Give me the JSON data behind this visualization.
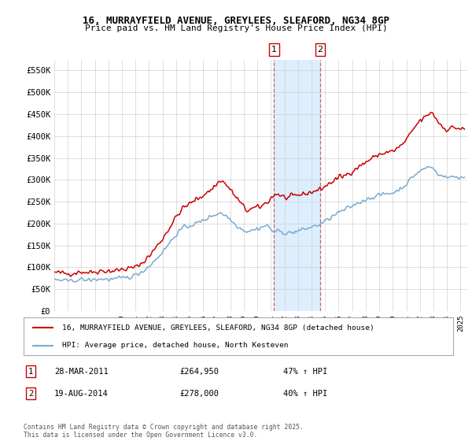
{
  "title": "16, MURRAYFIELD AVENUE, GREYLEES, SLEAFORD, NG34 8GP",
  "subtitle": "Price paid vs. HM Land Registry's House Price Index (HPI)",
  "legend_line1": "16, MURRAYFIELD AVENUE, GREYLEES, SLEAFORD, NG34 8GP (detached house)",
  "legend_line2": "HPI: Average price, detached house, North Kesteven",
  "red_color": "#cc0000",
  "blue_color": "#7aabcf",
  "shade_color": "#ddeeff",
  "annotation1": {
    "label": "1",
    "date": "28-MAR-2011",
    "price": "£264,950",
    "hpi": "47% ↑ HPI"
  },
  "annotation2": {
    "label": "2",
    "date": "19-AUG-2014",
    "price": "£278,000",
    "hpi": "40% ↑ HPI"
  },
  "vline1_x": 2011.23,
  "vline2_x": 2014.63,
  "footer": "Contains HM Land Registry data © Crown copyright and database right 2025.\nThis data is licensed under the Open Government Licence v3.0.",
  "ylim": [
    0,
    575000
  ],
  "xlim_start": 1995,
  "xlim_end": 2025.5,
  "anchors_red": [
    [
      1995.0,
      88000
    ],
    [
      1995.5,
      87000
    ],
    [
      1996.0,
      85000
    ],
    [
      1996.5,
      87000
    ],
    [
      1997.0,
      90000
    ],
    [
      1997.5,
      88000
    ],
    [
      1998.0,
      90000
    ],
    [
      1998.5,
      92000
    ],
    [
      1999.0,
      91000
    ],
    [
      1999.5,
      92000
    ],
    [
      2000.0,
      95000
    ],
    [
      2000.5,
      97000
    ],
    [
      2001.0,
      100000
    ],
    [
      2001.5,
      110000
    ],
    [
      2002.0,
      125000
    ],
    [
      2002.5,
      145000
    ],
    [
      2003.0,
      165000
    ],
    [
      2003.5,
      190000
    ],
    [
      2004.0,
      215000
    ],
    [
      2004.5,
      235000
    ],
    [
      2005.0,
      245000
    ],
    [
      2005.5,
      255000
    ],
    [
      2006.0,
      265000
    ],
    [
      2006.5,
      275000
    ],
    [
      2007.0,
      290000
    ],
    [
      2007.3,
      300000
    ],
    [
      2007.8,
      285000
    ],
    [
      2008.3,
      265000
    ],
    [
      2008.8,
      245000
    ],
    [
      2009.2,
      230000
    ],
    [
      2009.8,
      235000
    ],
    [
      2010.2,
      238000
    ],
    [
      2010.7,
      248000
    ],
    [
      2011.23,
      264950
    ],
    [
      2011.5,
      268000
    ],
    [
      2011.8,
      262000
    ],
    [
      2012.2,
      258000
    ],
    [
      2012.7,
      262000
    ],
    [
      2013.0,
      265000
    ],
    [
      2013.5,
      268000
    ],
    [
      2014.0,
      272000
    ],
    [
      2014.63,
      278000
    ],
    [
      2015.0,
      285000
    ],
    [
      2015.5,
      295000
    ],
    [
      2016.0,
      305000
    ],
    [
      2016.5,
      310000
    ],
    [
      2017.0,
      320000
    ],
    [
      2017.5,
      330000
    ],
    [
      2018.0,
      340000
    ],
    [
      2018.5,
      350000
    ],
    [
      2019.0,
      358000
    ],
    [
      2019.5,
      362000
    ],
    [
      2020.0,
      365000
    ],
    [
      2020.5,
      375000
    ],
    [
      2021.0,
      390000
    ],
    [
      2021.5,
      415000
    ],
    [
      2022.0,
      435000
    ],
    [
      2022.5,
      445000
    ],
    [
      2022.8,
      455000
    ],
    [
      2023.0,
      450000
    ],
    [
      2023.3,
      435000
    ],
    [
      2023.7,
      420000
    ],
    [
      2024.0,
      415000
    ],
    [
      2024.5,
      420000
    ],
    [
      2025.2,
      415000
    ]
  ],
  "anchors_blue": [
    [
      1995.0,
      72000
    ],
    [
      1995.5,
      70000
    ],
    [
      1996.0,
      68000
    ],
    [
      1996.5,
      70000
    ],
    [
      1997.0,
      72000
    ],
    [
      1997.5,
      70000
    ],
    [
      1998.0,
      72000
    ],
    [
      1998.5,
      73000
    ],
    [
      1999.0,
      72000
    ],
    [
      1999.5,
      73000
    ],
    [
      2000.0,
      75000
    ],
    [
      2000.5,
      77000
    ],
    [
      2001.0,
      82000
    ],
    [
      2001.5,
      90000
    ],
    [
      2002.0,
      102000
    ],
    [
      2002.5,
      118000
    ],
    [
      2003.0,
      135000
    ],
    [
      2003.5,
      155000
    ],
    [
      2004.0,
      175000
    ],
    [
      2004.5,
      190000
    ],
    [
      2005.0,
      195000
    ],
    [
      2005.5,
      200000
    ],
    [
      2006.0,
      207000
    ],
    [
      2006.5,
      215000
    ],
    [
      2007.0,
      222000
    ],
    [
      2007.3,
      225000
    ],
    [
      2007.8,
      215000
    ],
    [
      2008.3,
      200000
    ],
    [
      2008.8,
      188000
    ],
    [
      2009.2,
      182000
    ],
    [
      2009.8,
      186000
    ],
    [
      2010.2,
      190000
    ],
    [
      2010.7,
      196000
    ],
    [
      2011.23,
      180000
    ],
    [
      2011.5,
      183000
    ],
    [
      2011.8,
      180000
    ],
    [
      2012.2,
      178000
    ],
    [
      2012.7,
      180000
    ],
    [
      2013.0,
      183000
    ],
    [
      2013.5,
      187000
    ],
    [
      2014.0,
      192000
    ],
    [
      2014.63,
      198000
    ],
    [
      2015.0,
      205000
    ],
    [
      2015.5,
      215000
    ],
    [
      2016.0,
      225000
    ],
    [
      2016.5,
      232000
    ],
    [
      2017.0,
      240000
    ],
    [
      2017.5,
      248000
    ],
    [
      2018.0,
      255000
    ],
    [
      2018.5,
      260000
    ],
    [
      2019.0,
      265000
    ],
    [
      2019.5,
      268000
    ],
    [
      2020.0,
      270000
    ],
    [
      2020.5,
      278000
    ],
    [
      2021.0,
      290000
    ],
    [
      2021.5,
      308000
    ],
    [
      2022.0,
      320000
    ],
    [
      2022.5,
      328000
    ],
    [
      2022.8,
      330000
    ],
    [
      2023.0,
      325000
    ],
    [
      2023.3,
      315000
    ],
    [
      2023.7,
      308000
    ],
    [
      2024.0,
      305000
    ],
    [
      2024.5,
      307000
    ],
    [
      2025.2,
      305000
    ]
  ]
}
